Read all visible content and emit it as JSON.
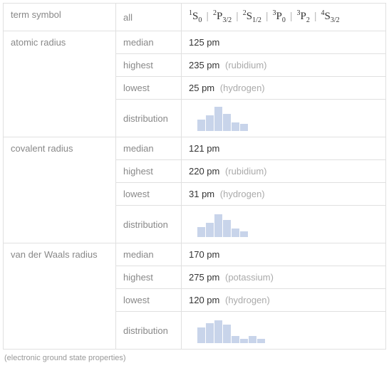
{
  "rows": {
    "term_symbol": {
      "label": "term symbol",
      "sub": "all",
      "symbols": [
        {
          "super": "1",
          "letter": "S",
          "sub": "0"
        },
        {
          "super": "2",
          "letter": "P",
          "sub": "3/2"
        },
        {
          "super": "2",
          "letter": "S",
          "sub": "1/2"
        },
        {
          "super": "3",
          "letter": "P",
          "sub": "0"
        },
        {
          "super": "3",
          "letter": "P",
          "sub": "2"
        },
        {
          "super": "4",
          "letter": "S",
          "sub": "3/2"
        }
      ]
    },
    "atomic_radius": {
      "label": "atomic radius",
      "median": {
        "label": "median",
        "value": "125 pm"
      },
      "highest": {
        "label": "highest",
        "value": "235 pm",
        "note": "(rubidium)"
      },
      "lowest": {
        "label": "lowest",
        "value": "25 pm",
        "note": "(hydrogen)"
      },
      "distribution": {
        "label": "distribution",
        "bars": [
          0,
          16,
          22,
          34,
          24,
          12,
          10
        ]
      }
    },
    "covalent_radius": {
      "label": "covalent radius",
      "median": {
        "label": "median",
        "value": "121 pm"
      },
      "highest": {
        "label": "highest",
        "value": "220 pm",
        "note": "(rubidium)"
      },
      "lowest": {
        "label": "lowest",
        "value": "31 pm",
        "note": "(hydrogen)"
      },
      "distribution": {
        "label": "distribution",
        "bars": [
          0,
          14,
          20,
          32,
          24,
          12,
          8
        ]
      }
    },
    "vdw_radius": {
      "label": "van der Waals radius",
      "median": {
        "label": "median",
        "value": "170 pm"
      },
      "highest": {
        "label": "highest",
        "value": "275 pm",
        "note": "(potassium)"
      },
      "lowest": {
        "label": "lowest",
        "value": "120 pm",
        "note": "(hydrogen)"
      },
      "distribution": {
        "label": "distribution",
        "bars": [
          0,
          22,
          28,
          32,
          26,
          10,
          6,
          10,
          6
        ]
      }
    }
  },
  "footnote": "(electronic ground state properties)",
  "colors": {
    "bar_fill": "#c8d4ea"
  }
}
